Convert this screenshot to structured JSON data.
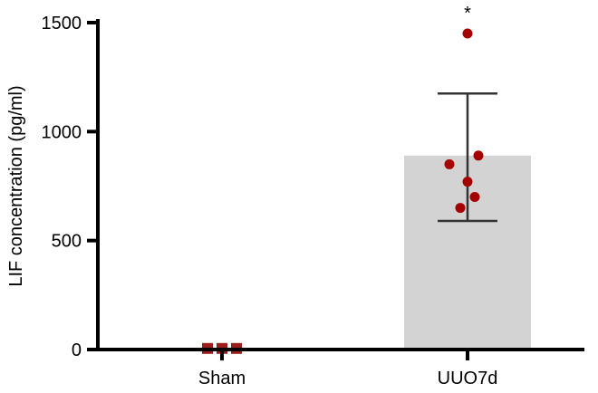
{
  "chart_data": {
    "type": "bar",
    "title": "",
    "xlabel": "",
    "ylabel": "LIF concentration (pg/ml)",
    "ylim": [
      0,
      1500
    ],
    "yticks": [
      0,
      500,
      1000,
      1500
    ],
    "categories": [
      "Sham",
      "UUO7d"
    ],
    "values": [
      5,
      890
    ],
    "error_upper": [
      null,
      1175
    ],
    "error_lower": [
      null,
      590
    ],
    "points": [
      [
        5,
        5,
        5
      ],
      [
        1450,
        890,
        850,
        770,
        700,
        650
      ]
    ],
    "significance": [
      "",
      "*"
    ],
    "grid": false,
    "legend": "none",
    "colors": {
      "bar": "#d3d3d3",
      "point": "#a50000",
      "sham_marker": "#9b1c1c",
      "axis": "#000000",
      "error_bar": "#333333"
    }
  }
}
